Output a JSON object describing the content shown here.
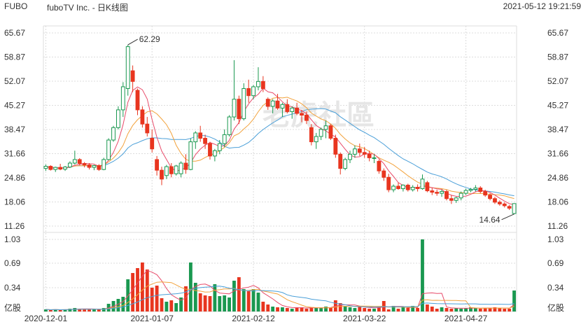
{
  "header": {
    "symbol": "FUBO",
    "name": "fuboTV Inc. - 日K线图",
    "timestamp": "2021-05-12 19:21:59"
  },
  "watermark": "老虎社區",
  "colors": {
    "up": "#1a9850",
    "down": "#e8351f",
    "ma5": "#e84b6a",
    "ma10": "#f2a23c",
    "ma20": "#4a9fd8",
    "grid": "#dcdcdc"
  },
  "chart_data": {
    "type": "candlestick",
    "price_axis": {
      "ticks": [
        "65.67",
        "58.87",
        "52.07",
        "45.27",
        "38.47",
        "31.66",
        "24.86",
        "18.06",
        "11.26"
      ],
      "ylim": [
        11.26,
        65.67
      ]
    },
    "volume_axis": {
      "ticks": [
        "1.03",
        "0.69",
        "0.34"
      ],
      "unit": "亿股",
      "ylim": [
        0,
        1.03
      ]
    },
    "x_labels": [
      "2020-12-01",
      "2021-01-07",
      "2021-02-12",
      "2021-03-22",
      "2021-04-27"
    ],
    "annotations": [
      {
        "text": "62.29",
        "value": 62.29
      },
      {
        "text": "14.64",
        "value": 14.64
      }
    ],
    "ohlc": [
      [
        27.5,
        28.6,
        26.8,
        28.1
      ],
      [
        28.1,
        28.4,
        26.9,
        27.2
      ],
      [
        27.2,
        28.0,
        26.5,
        27.8
      ],
      [
        27.8,
        28.8,
        27.0,
        27.3
      ],
      [
        27.3,
        28.2,
        26.8,
        27.9
      ],
      [
        27.9,
        29.5,
        27.6,
        29.0
      ],
      [
        29.0,
        32.5,
        28.6,
        30.0
      ],
      [
        30.0,
        30.4,
        28.4,
        28.9
      ],
      [
        28.9,
        29.3,
        27.8,
        28.5
      ],
      [
        28.5,
        29.0,
        27.2,
        27.8
      ],
      [
        27.8,
        28.5,
        27.0,
        28.3
      ],
      [
        28.3,
        28.7,
        26.8,
        27.2
      ],
      [
        27.2,
        30.5,
        27.0,
        30.0
      ],
      [
        30.0,
        36.0,
        29.8,
        35.5
      ],
      [
        35.5,
        39.5,
        35.0,
        39.0
      ],
      [
        39.0,
        45.0,
        38.5,
        44.0
      ],
      [
        44.0,
        51.8,
        42.0,
        50.5
      ],
      [
        50.0,
        62.3,
        48.0,
        61.8
      ],
      [
        55.0,
        56.5,
        49.0,
        52.0
      ],
      [
        49.5,
        50.0,
        42.5,
        44.0
      ],
      [
        44.0,
        45.0,
        39.0,
        40.0
      ],
      [
        40.0,
        42.0,
        36.5,
        37.5
      ],
      [
        36.0,
        38.5,
        32.0,
        33.0
      ],
      [
        30.0,
        31.0,
        25.5,
        27.0
      ],
      [
        27.0,
        28.0,
        22.8,
        24.5
      ],
      [
        25.5,
        28.5,
        24.5,
        28.0
      ],
      [
        28.0,
        29.0,
        25.0,
        26.0
      ],
      [
        26.0,
        28.5,
        25.5,
        28.2
      ],
      [
        26.0,
        29.5,
        25.0,
        29.0
      ],
      [
        29.0,
        31.5,
        26.0,
        27.2
      ],
      [
        27.2,
        36.0,
        27.0,
        35.0
      ],
      [
        35.0,
        38.0,
        33.0,
        37.5
      ],
      [
        37.5,
        39.5,
        35.0,
        36.0
      ],
      [
        36.0,
        37.0,
        33.0,
        34.5
      ],
      [
        34.5,
        35.0,
        30.0,
        31.0
      ],
      [
        31.0,
        33.0,
        29.5,
        32.5
      ],
      [
        32.5,
        35.5,
        31.5,
        34.5
      ],
      [
        34.5,
        38.5,
        33.5,
        37.0
      ],
      [
        37.0,
        42.5,
        36.5,
        42.0
      ],
      [
        42.0,
        58.0,
        41.0,
        47.0
      ],
      [
        47.0,
        48.0,
        40.0,
        41.5
      ],
      [
        41.5,
        51.5,
        41.0,
        50.0
      ],
      [
        50.0,
        52.5,
        46.0,
        48.0
      ],
      [
        48.0,
        51.0,
        47.0,
        50.5
      ],
      [
        50.5,
        56.0,
        49.5,
        52.0
      ],
      [
        52.0,
        53.5,
        49.0,
        50.0
      ],
      [
        47.0,
        47.5,
        44.0,
        45.0
      ],
      [
        45.0,
        47.0,
        43.0,
        46.5
      ],
      [
        46.5,
        48.5,
        44.0,
        44.5
      ],
      [
        44.5,
        46.0,
        42.0,
        45.5
      ],
      [
        45.5,
        47.0,
        43.0,
        43.5
      ],
      [
        43.5,
        45.0,
        41.5,
        44.5
      ],
      [
        44.5,
        46.0,
        42.5,
        43.0
      ],
      [
        43.0,
        44.0,
        40.5,
        42.5
      ],
      [
        42.5,
        43.5,
        40.0,
        41.0
      ],
      [
        39.0,
        40.0,
        34.0,
        35.0
      ],
      [
        35.0,
        37.5,
        33.0,
        36.5
      ],
      [
        36.5,
        39.0,
        35.5,
        38.5
      ],
      [
        38.5,
        41.0,
        36.0,
        39.5
      ],
      [
        39.5,
        40.0,
        35.5,
        36.0
      ],
      [
        36.0,
        37.0,
        30.5,
        31.5
      ],
      [
        31.5,
        32.0,
        25.8,
        27.5
      ],
      [
        27.5,
        30.5,
        27.0,
        30.0
      ],
      [
        30.0,
        32.5,
        29.0,
        31.5
      ],
      [
        31.5,
        34.0,
        30.5,
        33.0
      ],
      [
        33.0,
        34.5,
        31.0,
        32.0
      ],
      [
        32.0,
        33.5,
        30.5,
        31.5
      ],
      [
        31.5,
        32.5,
        29.5,
        30.5
      ],
      [
        30.5,
        31.5,
        29.0,
        30.5
      ],
      [
        29.5,
        30.0,
        26.0,
        26.8
      ],
      [
        26.8,
        27.5,
        24.0,
        25.0
      ],
      [
        25.0,
        26.0,
        20.8,
        21.5
      ],
      [
        21.5,
        23.0,
        20.8,
        22.5
      ],
      [
        22.5,
        23.5,
        21.5,
        21.8
      ],
      [
        21.8,
        23.0,
        21.0,
        22.8
      ],
      [
        22.8,
        23.2,
        21.0,
        21.5
      ],
      [
        21.5,
        22.8,
        21.0,
        22.2
      ],
      [
        22.2,
        23.0,
        21.0,
        21.8
      ],
      [
        21.8,
        25.8,
        21.5,
        24.5
      ],
      [
        23.5,
        24.0,
        20.8,
        21.2
      ],
      [
        21.2,
        22.0,
        20.0,
        20.8
      ],
      [
        20.8,
        21.5,
        19.8,
        20.5
      ],
      [
        20.5,
        21.5,
        19.5,
        21.0
      ],
      [
        21.0,
        21.5,
        18.5,
        19.0
      ],
      [
        19.0,
        20.0,
        17.5,
        18.5
      ],
      [
        18.5,
        19.5,
        17.8,
        19.2
      ],
      [
        19.2,
        21.0,
        18.5,
        20.5
      ],
      [
        20.5,
        21.8,
        20.0,
        21.3
      ],
      [
        21.3,
        22.0,
        20.8,
        21.6
      ],
      [
        21.6,
        22.8,
        21.0,
        22.0
      ],
      [
        22.0,
        22.5,
        20.5,
        21.0
      ],
      [
        21.0,
        21.5,
        19.5,
        20.0
      ],
      [
        20.0,
        20.5,
        18.5,
        19.0
      ],
      [
        19.0,
        19.5,
        17.5,
        18.0
      ],
      [
        18.0,
        18.5,
        17.0,
        17.5
      ],
      [
        17.5,
        18.0,
        16.5,
        17.0
      ],
      [
        16.8,
        17.2,
        15.8,
        16.3
      ],
      [
        14.8,
        17.7,
        14.64,
        17.6
      ]
    ],
    "volume": [
      0.03,
      0.02,
      0.03,
      0.02,
      0.03,
      0.04,
      0.05,
      0.04,
      0.03,
      0.03,
      0.03,
      0.03,
      0.05,
      0.11,
      0.15,
      0.18,
      0.21,
      0.46,
      0.55,
      0.62,
      0.7,
      0.6,
      0.34,
      0.37,
      0.19,
      0.14,
      0.16,
      0.12,
      0.2,
      0.36,
      0.7,
      0.41,
      0.26,
      0.23,
      0.22,
      0.39,
      0.22,
      0.23,
      0.2,
      0.44,
      0.49,
      0.32,
      0.29,
      0.32,
      0.27,
      0.14,
      0.1,
      0.07,
      0.06,
      0.06,
      0.05,
      0.04,
      0.06,
      0.06,
      0.04,
      0.06,
      0.05,
      0.05,
      0.07,
      0.05,
      0.16,
      0.12,
      0.08,
      0.06,
      0.05,
      0.08,
      0.05,
      0.04,
      0.04,
      0.06,
      0.15,
      0.03,
      0.08,
      0.04,
      0.06,
      0.05,
      0.08,
      0.05,
      1.03,
      0.1,
      0.07,
      0.04,
      0.06,
      0.05,
      0.04,
      0.05,
      0.04,
      0.05,
      0.06,
      0.05,
      0.04,
      0.05,
      0.05,
      0.06,
      0.05,
      0.04,
      0.04,
      0.3
    ]
  }
}
